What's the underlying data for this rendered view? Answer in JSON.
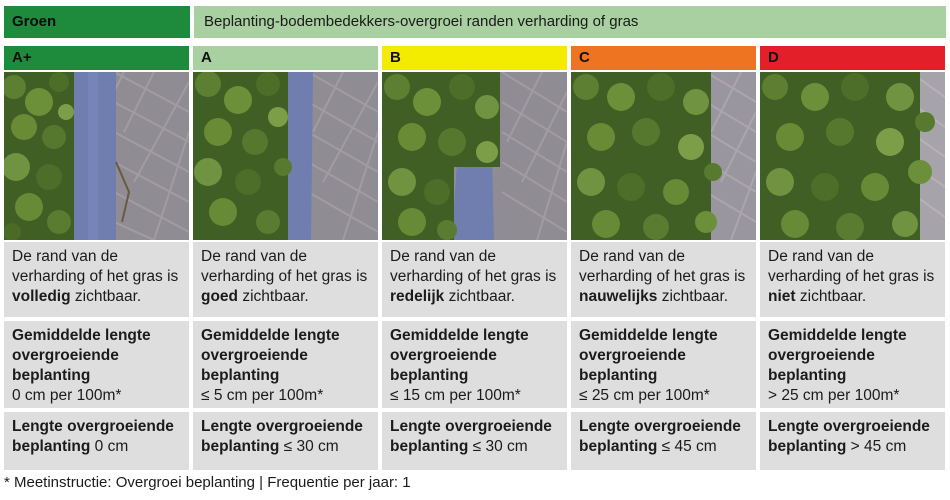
{
  "header": {
    "category": "Groen",
    "title": "Beplanting-bodembedekkers-overgroei randen verharding of gras"
  },
  "columns": [
    {
      "grade": "A+",
      "color": "#1e8a3c",
      "desc_pre": "De rand van de verharding of het gras is ",
      "desc_bold": "volledig",
      "desc_post": " zichtbaar.",
      "avg_label": "Gemiddelde lengte overgroeiende beplanting",
      "avg_value": "0 cm per 100m*",
      "len_label": "Lengte overgroeiende beplanting",
      "len_value": " 0 cm"
    },
    {
      "grade": "A",
      "color": "#a8d0a0",
      "desc_pre": "De rand van de verharding of het gras is ",
      "desc_bold": "goed",
      "desc_post": " zichtbaar.",
      "avg_label": "Gemiddelde lengte overgroeiende beplanting",
      "avg_value": "≤ 5 cm per 100m*",
      "len_label": "Lengte overgroeiende beplanting",
      "len_value": " ≤ 30 cm"
    },
    {
      "grade": "B",
      "color": "#f4ec00",
      "desc_pre": "De rand van de verharding of het gras is ",
      "desc_bold": "redelijk",
      "desc_post": " zichtbaar.",
      "avg_label": "Gemiddelde lengte overgroeiende beplanting",
      "avg_value": "≤ 15 cm per 100m*",
      "len_label": "Lengte overgroeiende beplanting",
      "len_value": " ≤ 30 cm"
    },
    {
      "grade": "C",
      "color": "#ee7421",
      "desc_pre": "De rand van de verharding of het gras is ",
      "desc_bold": "nauwelijks",
      "desc_post": " zichtbaar.",
      "avg_label": "Gemiddelde lengte overgroeiende beplanting",
      "avg_value": "≤ 25 cm per 100m*",
      "len_label": "Lengte overgroeiende beplanting",
      "len_value": " ≤ 45 cm"
    },
    {
      "grade": "D",
      "color": "#e3202a",
      "desc_pre": "De rand van de verharding of het gras is ",
      "desc_bold": "niet",
      "desc_post": " zichtbaar.",
      "avg_label": "Gemiddelde lengte overgroeiende beplanting",
      "avg_value": "> 25 cm per 100m*",
      "len_label": "Lengte overgroeiende beplanting",
      "len_value": " > 45 cm"
    }
  ],
  "footnote": "* Meetinstructie: Overgroei beplanting | Frequentie per jaar: 1"
}
